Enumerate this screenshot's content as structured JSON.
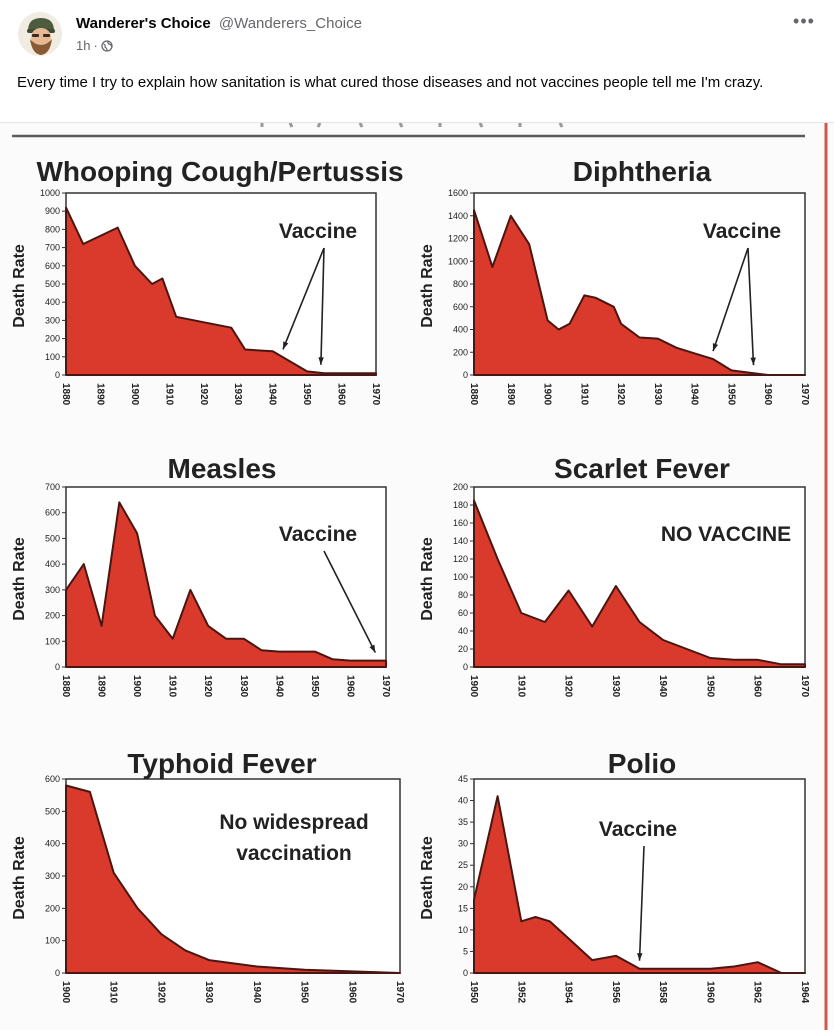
{
  "post": {
    "author_name": "Wanderer's Choice",
    "author_handle": "@Wanderers_Choice",
    "time": "1h",
    "separator": "·",
    "audience_icon": "globe-icon",
    "more_label": "•••",
    "text": "Every time I try to explain how sanitation is what cured those diseases and not vaccines people tell me I'm crazy.",
    "accent_color": "#d93a2b",
    "edge_color": "#4a1612"
  },
  "chart_data": [
    {
      "type": "area",
      "title": "Whooping Cough/Pertussis",
      "ylabel": "Death Rate",
      "xlabel": "",
      "x": [
        1880,
        1885,
        1895,
        1900,
        1905,
        1908,
        1912,
        1928,
        1932,
        1940,
        1950,
        1955,
        1970
      ],
      "values": [
        920,
        720,
        810,
        600,
        500,
        530,
        320,
        260,
        140,
        130,
        20,
        10,
        10
      ],
      "xlim": [
        1880,
        1970
      ],
      "ylim": [
        0,
        1000
      ],
      "xticks": [
        "1880",
        "1890",
        "1900",
        "1910",
        "1920",
        "1930",
        "1940",
        "1950",
        "1960",
        "1970"
      ],
      "yticks": [
        "0",
        "100",
        "200",
        "300",
        "400",
        "500",
        "600",
        "700",
        "800",
        "900",
        "1000"
      ],
      "annotation": "Vaccine",
      "arrows_to_years": [
        1943,
        1954
      ]
    },
    {
      "type": "area",
      "title": "Diphtheria",
      "ylabel": "Death Rate",
      "xlabel": "",
      "x": [
        1880,
        1885,
        1890,
        1895,
        1900,
        1903,
        1906,
        1910,
        1913,
        1918,
        1920,
        1925,
        1930,
        1935,
        1940,
        1945,
        1950,
        1955,
        1960,
        1970
      ],
      "values": [
        1450,
        950,
        1400,
        1150,
        480,
        400,
        450,
        700,
        680,
        600,
        450,
        330,
        320,
        240,
        190,
        140,
        40,
        20,
        0,
        0
      ],
      "xlim": [
        1880,
        1970
      ],
      "ylim": [
        0,
        1600
      ],
      "xticks": [
        "1880",
        "1890",
        "1900",
        "1910",
        "1920",
        "1930",
        "1940",
        "1950",
        "1960",
        "1970"
      ],
      "yticks": [
        "0",
        "200",
        "400",
        "600",
        "800",
        "1000",
        "1200",
        "1400",
        "1600"
      ],
      "annotation": "Vaccine",
      "arrows_to_years": [
        1945,
        1956
      ]
    },
    {
      "type": "area",
      "title": "Measles",
      "ylabel": "Death Rate",
      "xlabel": "",
      "x": [
        1880,
        1885,
        1890,
        1895,
        1900,
        1905,
        1910,
        1915,
        1920,
        1925,
        1930,
        1935,
        1940,
        1945,
        1950,
        1955,
        1960,
        1970
      ],
      "values": [
        300,
        400,
        160,
        640,
        520,
        200,
        110,
        300,
        160,
        110,
        110,
        65,
        60,
        60,
        60,
        30,
        25,
        25
      ],
      "xlim": [
        1880,
        1970
      ],
      "ylim": [
        0,
        700
      ],
      "xticks": [
        "1880",
        "1890",
        "1900",
        "1910",
        "1920",
        "1930",
        "1940",
        "1950",
        "1960",
        "1970"
      ],
      "yticks": [
        "0",
        "100",
        "200",
        "300",
        "400",
        "500",
        "600",
        "700"
      ],
      "annotation": "Vaccine",
      "arrows_to_years": [
        1967
      ]
    },
    {
      "type": "area",
      "title": "Scarlet Fever",
      "ylabel": "Death Rate",
      "xlabel": "",
      "x": [
        1900,
        1905,
        1910,
        1915,
        1920,
        1925,
        1930,
        1935,
        1940,
        1945,
        1950,
        1955,
        1960,
        1965,
        1970
      ],
      "values": [
        185,
        120,
        60,
        50,
        85,
        45,
        90,
        50,
        30,
        20,
        10,
        8,
        8,
        3,
        3
      ],
      "xlim": [
        1900,
        1970
      ],
      "ylim": [
        0,
        200
      ],
      "xticks": [
        "1900",
        "1910",
        "1920",
        "1930",
        "1940",
        "1950",
        "1960",
        "1970"
      ],
      "yticks": [
        "0",
        "20",
        "40",
        "60",
        "80",
        "100",
        "120",
        "140",
        "160",
        "180",
        "200"
      ],
      "annotation": "NO VACCINE",
      "arrows_to_years": []
    },
    {
      "type": "area",
      "title": "Typhoid Fever",
      "ylabel": "Death Rate",
      "xlabel": "",
      "x": [
        1900,
        1905,
        1910,
        1915,
        1920,
        1925,
        1930,
        1940,
        1950,
        1960,
        1970
      ],
      "values": [
        580,
        560,
        310,
        200,
        120,
        70,
        40,
        20,
        10,
        5,
        0
      ],
      "xlim": [
        1900,
        1970
      ],
      "ylim": [
        0,
        600
      ],
      "xticks": [
        "1900",
        "1910",
        "1920",
        "1930",
        "1940",
        "1950",
        "1960",
        "1970"
      ],
      "yticks": [
        "0",
        "100",
        "200",
        "300",
        "400",
        "500",
        "600"
      ],
      "annotation": "No widespread vaccination",
      "arrows_to_years": []
    },
    {
      "type": "area",
      "title": "Polio",
      "ylabel": "Death Rate",
      "xlabel": "",
      "x": [
        1950,
        1951,
        1952,
        1952.6,
        1953.2,
        1954,
        1955,
        1956,
        1957,
        1958,
        1959,
        1960,
        1961,
        1962,
        1963,
        1964
      ],
      "values": [
        17,
        41,
        12,
        13,
        12,
        8,
        3,
        4,
        1,
        1,
        1,
        1,
        1.5,
        2.5,
        0,
        0
      ],
      "xlim": [
        1950,
        1964
      ],
      "ylim": [
        0,
        45
      ],
      "xticks": [
        "1950",
        "1952",
        "1954",
        "1956",
        "1958",
        "1960",
        "1962",
        "1964"
      ],
      "yticks": [
        "0",
        "5",
        "10",
        "15",
        "20",
        "25",
        "30",
        "35",
        "40",
        "45"
      ],
      "annotation": "Vaccine",
      "arrows_to_years": [
        1957
      ]
    }
  ]
}
